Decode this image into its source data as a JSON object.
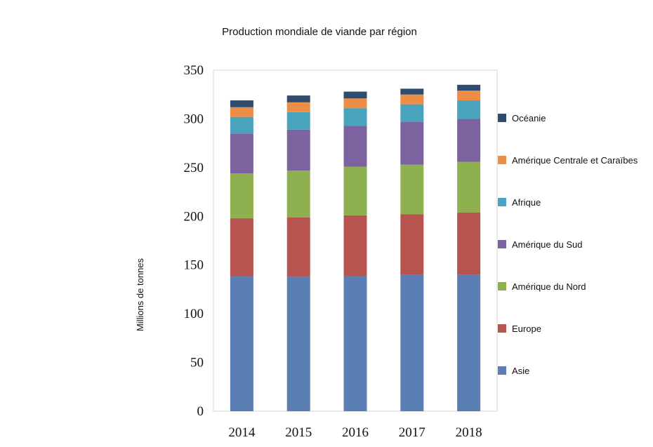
{
  "chart_data": {
    "type": "bar",
    "stacked": true,
    "title": "Production mondiale de viande par région",
    "xlabel": "",
    "ylabel": "Millions de tonnes",
    "ylim": [
      0,
      350
    ],
    "yticks": [
      0,
      50,
      100,
      150,
      200,
      250,
      300,
      350
    ],
    "grid": false,
    "legend_position": "right",
    "categories": [
      "2014",
      "2015",
      "2016",
      "2017",
      "2018"
    ],
    "series": [
      {
        "name": "Asie",
        "color": "#5b7fb5",
        "values": [
          139,
          138,
          139,
          140,
          140
        ]
      },
      {
        "name": "Europe",
        "color": "#b85450",
        "values": [
          59,
          61,
          62,
          62,
          64
        ]
      },
      {
        "name": "Amérique du Nord",
        "color": "#8fb04f",
        "values": [
          46,
          48,
          50,
          51,
          52
        ]
      },
      {
        "name": "Amérique du Sud",
        "color": "#7c63a0",
        "values": [
          41,
          42,
          42,
          44,
          44
        ]
      },
      {
        "name": "Afrique",
        "color": "#4aa3bd",
        "values": [
          17,
          18,
          18,
          18,
          19
        ]
      },
      {
        "name": "Amérique Centrale et Caraïbes",
        "color": "#ee8d45",
        "values": [
          10,
          10,
          10,
          10,
          10
        ]
      },
      {
        "name": "Océanie",
        "color": "#2f4b6e",
        "values": [
          7,
          7,
          7,
          6,
          6
        ]
      }
    ]
  }
}
